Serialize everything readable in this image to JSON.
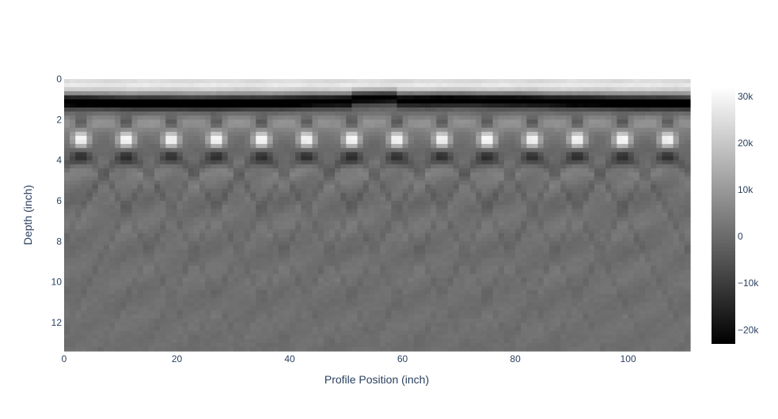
{
  "chart_data": {
    "type": "heatmap",
    "title": "",
    "xlabel": "Profile Position (inch)",
    "ylabel": "Depth (inch)",
    "xlim": [
      0,
      111
    ],
    "ylim": [
      13.4,
      0
    ],
    "x_ticks": [
      "0",
      "20",
      "40",
      "60",
      "80",
      "100"
    ],
    "x_tick_values": [
      0,
      20,
      40,
      60,
      80,
      100
    ],
    "y_ticks": [
      "0",
      "2",
      "4",
      "6",
      "8",
      "10",
      "12"
    ],
    "y_tick_values": [
      0,
      2,
      4,
      6,
      8,
      10,
      12
    ],
    "colorscale": "greys",
    "zmin": -23000,
    "zmax": 32000,
    "colorbar_ticks": [
      "30k",
      "20k",
      "10k",
      "0",
      "−10k",
      "−20k"
    ],
    "colorbar_tick_values": [
      30000,
      20000,
      10000,
      0,
      -10000,
      -20000
    ],
    "rebar_hyperbola_apex_positions": [
      3,
      11,
      19,
      27,
      35,
      43,
      51,
      59,
      67,
      75,
      83,
      91,
      99,
      107
    ],
    "rebar_apex_depth": 3.0,
    "surface_reflection_depth": 1.1,
    "background_value": 1000
  }
}
